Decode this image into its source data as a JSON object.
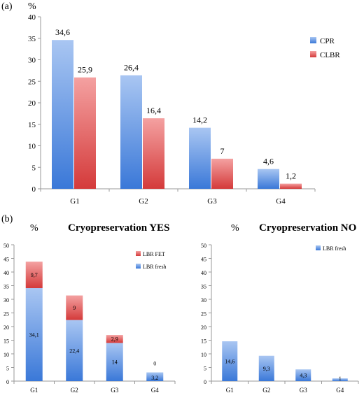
{
  "colors": {
    "blue_light": "#a9c6f2",
    "blue_dark": "#3a78d8",
    "red_light": "#f4a1a1",
    "red_dark": "#d43a3a",
    "axis": "#999999"
  },
  "chart_data": [
    {
      "panel": "(a)",
      "type": "bar",
      "ylabel": "%",
      "ylim": [
        0,
        40
      ],
      "yticks": [
        "0",
        "5",
        "10",
        "15",
        "20",
        "25",
        "30",
        "35",
        "40"
      ],
      "categories": [
        "G1",
        "G2",
        "G3",
        "G4"
      ],
      "legend": "right",
      "series": [
        {
          "name": "CPR",
          "values": [
            34.6,
            26.4,
            14.2,
            4.6
          ],
          "labels": [
            "34,6",
            "26,4",
            "14,2",
            "4,6"
          ]
        },
        {
          "name": "CLBR",
          "values": [
            25.9,
            16.4,
            7,
            1.2
          ],
          "labels": [
            "25,9",
            "16,4",
            "7",
            "1,2"
          ]
        }
      ]
    },
    {
      "panel": "(b)",
      "type": "bar",
      "stacked": true,
      "title": "Cryopreservation YES",
      "ylabel": "%",
      "ylim": [
        0,
        50
      ],
      "yticks": [
        "0",
        "5",
        "10",
        "15",
        "20",
        "25",
        "30",
        "35",
        "40",
        "45",
        "50"
      ],
      "categories": [
        "G1",
        "G2",
        "G3",
        "G4"
      ],
      "legend": "top-right",
      "series": [
        {
          "name": "LBR fresh",
          "values": [
            34.1,
            22.4,
            14,
            3.2
          ],
          "labels": [
            "34,1",
            "22,4",
            "14",
            "3,2"
          ]
        },
        {
          "name": "LBR FET",
          "values": [
            9.7,
            9,
            2.9,
            0
          ],
          "labels": [
            "9,7",
            "9",
            "2,9",
            "0"
          ]
        }
      ]
    },
    {
      "type": "bar",
      "title": "Cryopreservation NO",
      "ylabel": "%",
      "ylim": [
        0,
        50
      ],
      "yticks": [
        "0",
        "5",
        "10",
        "15",
        "20",
        "25",
        "30",
        "35",
        "40",
        "45",
        "50"
      ],
      "categories": [
        "G1",
        "G2",
        "G3",
        "G4"
      ],
      "legend": "top-right",
      "series": [
        {
          "name": "LBR fresh",
          "values": [
            14.6,
            9.3,
            4.3,
            1
          ],
          "labels": [
            "14,6",
            "9,3",
            "4,3",
            "1"
          ]
        }
      ]
    }
  ]
}
